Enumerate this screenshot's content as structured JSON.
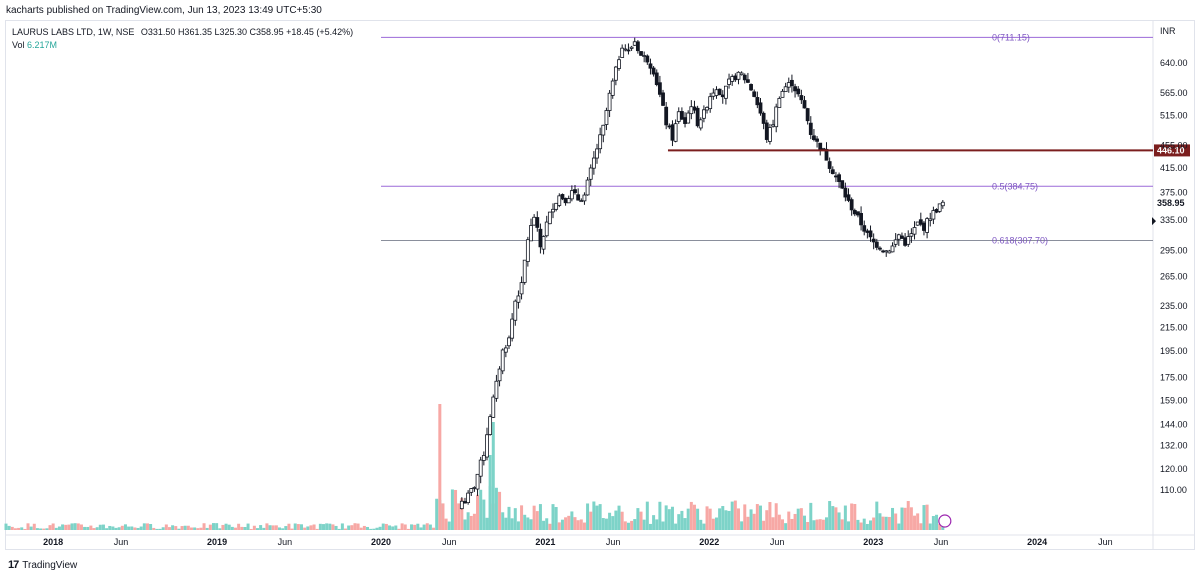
{
  "publisher": "kacharts published on TradingView.com, Jun 13, 2023 13:49 UTC+5:30",
  "legend": {
    "symbol": "LAURUS LABS LTD, 1W, NSE",
    "open": "O331.50",
    "high": "H361.35",
    "low": "L325.30",
    "close": "C358.95",
    "change": "+18.45 (+5.42%)",
    "vol_label": "Vol",
    "vol_value": "6.217M"
  },
  "footer": {
    "brand": "TradingView"
  },
  "colors": {
    "up": "#26a69a",
    "down": "#ef5350",
    "fib": "#9c6ad8",
    "fib_mid": "#7e57c2",
    "support": "#7b1e1e",
    "vol_up": "#7dd3c8",
    "vol_down": "#f7a8a5"
  },
  "chart_data": {
    "type": "candlestick",
    "title": "LAURUS LABS LTD, 1W, NSE",
    "currency": "INR",
    "y_scale": "log",
    "ylim": [
      100,
      730
    ],
    "y_ticks": [
      "640.00",
      "565.00",
      "515.00",
      "455.00",
      "415.00",
      "375.00",
      "335.00",
      "295.00",
      "265.00",
      "235.00",
      "215.00",
      "195.00",
      "175.00",
      "159.00",
      "144.00",
      "132.00",
      "120.00",
      "110.00"
    ],
    "x_ticks": [
      {
        "label": "2018",
        "date": "2018-01-01"
      },
      {
        "label": "Jun",
        "date": "2018-06-01"
      },
      {
        "label": "2019",
        "date": "2019-01-01"
      },
      {
        "label": "Jun",
        "date": "2019-06-01"
      },
      {
        "label": "2020",
        "date": "2020-01-01"
      },
      {
        "label": "Jun",
        "date": "2020-06-01"
      },
      {
        "label": "2021",
        "date": "2021-01-01"
      },
      {
        "label": "Jun",
        "date": "2021-06-01"
      },
      {
        "label": "2022",
        "date": "2022-01-01"
      },
      {
        "label": "Jun",
        "date": "2022-06-01"
      },
      {
        "label": "2023",
        "date": "2023-01-01"
      },
      {
        "label": "Jun",
        "date": "2023-06-01"
      },
      {
        "label": "2024",
        "date": "2024-01-01"
      },
      {
        "label": "Jun",
        "date": "2024-06-01"
      }
    ],
    "fib_levels": [
      {
        "label": "0(711.15)",
        "value": 711.15,
        "start": "2020-01-01"
      },
      {
        "label": "0.5(384.75)",
        "value": 384.75,
        "start": "2020-01-01"
      },
      {
        "label": "0.618(307.70)",
        "value": 307.7,
        "start": "2020-01-01"
      }
    ],
    "support_line": {
      "label": "446.10",
      "value": 446.1,
      "start": "2021-10-01"
    },
    "last_price": {
      "label": "358.95",
      "value": 358.95
    },
    "price_path": [
      [
        "2020-07-06",
        105
      ],
      [
        "2020-07-27",
        112
      ],
      [
        "2020-08-17",
        128
      ],
      [
        "2020-08-31",
        150
      ],
      [
        "2020-09-14",
        170
      ],
      [
        "2020-09-28",
        195
      ],
      [
        "2020-10-12",
        205
      ],
      [
        "2020-10-26",
        240
      ],
      [
        "2020-11-09",
        255
      ],
      [
        "2020-11-23",
        310
      ],
      [
        "2020-12-07",
        340
      ],
      [
        "2020-12-21",
        300
      ],
      [
        "2021-01-04",
        330
      ],
      [
        "2021-01-18",
        355
      ],
      [
        "2021-02-01",
        370
      ],
      [
        "2021-02-15",
        365
      ],
      [
        "2021-03-01",
        375
      ],
      [
        "2021-03-15",
        365
      ],
      [
        "2021-03-29",
        370
      ],
      [
        "2021-04-12",
        410
      ],
      [
        "2021-04-26",
        450
      ],
      [
        "2021-05-10",
        490
      ],
      [
        "2021-05-24",
        560
      ],
      [
        "2021-06-07",
        620
      ],
      [
        "2021-06-21",
        690
      ],
      [
        "2021-07-05",
        670
      ],
      [
        "2021-07-19",
        700
      ],
      [
        "2021-08-02",
        660
      ],
      [
        "2021-08-16",
        650
      ],
      [
        "2021-08-30",
        620
      ],
      [
        "2021-09-13",
        560
      ],
      [
        "2021-09-27",
        500
      ],
      [
        "2021-10-11",
        470
      ],
      [
        "2021-10-25",
        520
      ],
      [
        "2021-11-08",
        500
      ],
      [
        "2021-11-22",
        540
      ],
      [
        "2021-12-06",
        500
      ],
      [
        "2021-12-20",
        520
      ],
      [
        "2022-01-03",
        560
      ],
      [
        "2022-01-17",
        580
      ],
      [
        "2022-01-31",
        560
      ],
      [
        "2022-02-14",
        590
      ],
      [
        "2022-02-28",
        605
      ],
      [
        "2022-03-14",
        610
      ],
      [
        "2022-03-28",
        590
      ],
      [
        "2022-04-11",
        560
      ],
      [
        "2022-04-25",
        520
      ],
      [
        "2022-05-09",
        470
      ],
      [
        "2022-05-23",
        500
      ],
      [
        "2022-06-06",
        560
      ],
      [
        "2022-06-20",
        580
      ],
      [
        "2022-07-04",
        590
      ],
      [
        "2022-07-18",
        560
      ],
      [
        "2022-08-01",
        530
      ],
      [
        "2022-08-15",
        480
      ],
      [
        "2022-08-29",
        460
      ],
      [
        "2022-09-12",
        445
      ],
      [
        "2022-09-26",
        420
      ],
      [
        "2022-10-10",
        400
      ],
      [
        "2022-10-24",
        380
      ],
      [
        "2022-11-07",
        360
      ],
      [
        "2022-11-21",
        345
      ],
      [
        "2022-12-05",
        330
      ],
      [
        "2022-12-19",
        315
      ],
      [
        "2023-01-02",
        305
      ],
      [
        "2023-01-16",
        300
      ],
      [
        "2023-01-30",
        295
      ],
      [
        "2023-02-13",
        300
      ],
      [
        "2023-02-27",
        315
      ],
      [
        "2023-03-13",
        305
      ],
      [
        "2023-03-27",
        315
      ],
      [
        "2023-04-10",
        330
      ],
      [
        "2023-04-24",
        325
      ],
      [
        "2023-05-08",
        340
      ],
      [
        "2023-05-22",
        350
      ],
      [
        "2023-06-05",
        358.95
      ]
    ]
  }
}
